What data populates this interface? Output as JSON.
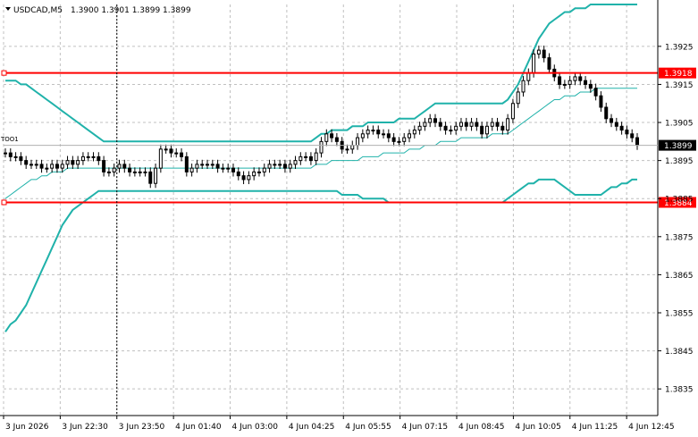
{
  "header": {
    "symbol": "USDCAD,M5",
    "ohlc": "1.3900 1.3901 1.3899 1.3899",
    "left_cut_label": "TOO1"
  },
  "chart_data": {
    "type": "candlestick",
    "title": "USDCAD,M5",
    "ylim": [
      1.3828,
      1.3936
    ],
    "y_ticks": [
      1.3925,
      1.3915,
      1.3905,
      1.3895,
      1.3885,
      1.3875,
      1.3865,
      1.3855,
      1.3845,
      1.3835
    ],
    "y_tick_labels": [
      "1.3925",
      "1.3915",
      "1.3905",
      "1.3895",
      "1.3885",
      "1.3875",
      "1.3865",
      "1.3855",
      "1.3845",
      "1.3835"
    ],
    "x_tick_labels": [
      "3 Jun 2026",
      "3 Jun 22:30",
      "3 Jun 23:50",
      "4 Jun 01:40",
      "4 Jun 03:00",
      "4 Jun 04:25",
      "4 Jun 05:55",
      "4 Jun 07:15",
      "4 Jun 08:45",
      "4 Jun 10:05",
      "4 Jun 11:25",
      "4 Jun 12:45"
    ],
    "grid": true,
    "current_price": "1.3899",
    "horizontal_lines": [
      {
        "label": "1.3918",
        "value": 1.3918,
        "color": "#ff0000"
      },
      {
        "label": "1.3884",
        "value": 1.3884,
        "color": "#ff0000"
      }
    ],
    "vertical_marker": "3 Jun 23:50",
    "closes": [
      1.3897,
      1.3896,
      1.3896,
      1.3895,
      1.3894,
      1.3894,
      1.3894,
      1.3893,
      1.3893,
      1.3894,
      1.3893,
      1.3894,
      1.3895,
      1.3894,
      1.3895,
      1.3896,
      1.3896,
      1.3896,
      1.3895,
      1.3892,
      1.3892,
      1.3893,
      1.3894,
      1.3893,
      1.3892,
      1.3892,
      1.3892,
      1.3892,
      1.3889,
      1.3893,
      1.3898,
      1.3898,
      1.3897,
      1.3897,
      1.3896,
      1.3892,
      1.3893,
      1.3894,
      1.3894,
      1.3894,
      1.3894,
      1.3893,
      1.3893,
      1.3893,
      1.3892,
      1.3891,
      1.389,
      1.3891,
      1.3892,
      1.3892,
      1.3893,
      1.3894,
      1.3894,
      1.3894,
      1.3893,
      1.3894,
      1.3895,
      1.3896,
      1.3896,
      1.3895,
      1.3897,
      1.39,
      1.3902,
      1.3901,
      1.39,
      1.3898,
      1.3898,
      1.3899,
      1.3901,
      1.3902,
      1.3903,
      1.3903,
      1.3902,
      1.3902,
      1.3901,
      1.39,
      1.39,
      1.3901,
      1.3902,
      1.3903,
      1.3904,
      1.3905,
      1.3906,
      1.3905,
      1.3904,
      1.3903,
      1.3903,
      1.3904,
      1.3905,
      1.3904,
      1.3905,
      1.3904,
      1.3902,
      1.3904,
      1.3905,
      1.3904,
      1.3903,
      1.3906,
      1.391,
      1.3913,
      1.3916,
      1.3918,
      1.3923,
      1.3924,
      1.3922,
      1.3919,
      1.3917,
      1.3915,
      1.3915,
      1.3916,
      1.3917,
      1.3916,
      1.3915,
      1.3914,
      1.3912,
      1.3909,
      1.3906,
      1.3905,
      1.3904,
      1.3903,
      1.3902,
      1.3901,
      1.3899
    ],
    "upper_band": [
      1.3916,
      1.3916,
      1.3916,
      1.3915,
      1.3915,
      1.3914,
      1.3913,
      1.3912,
      1.3911,
      1.391,
      1.3909,
      1.3908,
      1.3907,
      1.3906,
      1.3905,
      1.3904,
      1.3903,
      1.3902,
      1.3901,
      1.39,
      1.39,
      1.39,
      1.39,
      1.39,
      1.39,
      1.39,
      1.39,
      1.39,
      1.39,
      1.39,
      1.39,
      1.39,
      1.39,
      1.39,
      1.39,
      1.39,
      1.39,
      1.39,
      1.39,
      1.39,
      1.39,
      1.39,
      1.39,
      1.39,
      1.39,
      1.39,
      1.39,
      1.39,
      1.39,
      1.39,
      1.39,
      1.39,
      1.39,
      1.39,
      1.39,
      1.39,
      1.39,
      1.39,
      1.39,
      1.39,
      1.3901,
      1.3902,
      1.3902,
      1.3903,
      1.3903,
      1.3903,
      1.3903,
      1.3904,
      1.3904,
      1.3904,
      1.3905,
      1.3905,
      1.3905,
      1.3905,
      1.3905,
      1.3905,
      1.3906,
      1.3906,
      1.3906,
      1.3906,
      1.3907,
      1.3908,
      1.3909,
      1.391,
      1.391,
      1.391,
      1.391,
      1.391,
      1.391,
      1.391,
      1.391,
      1.391,
      1.391,
      1.391,
      1.391,
      1.391,
      1.391,
      1.3911,
      1.3913,
      1.3915,
      1.3918,
      1.3921,
      1.3924,
      1.3927,
      1.3929,
      1.3931,
      1.3932,
      1.3933,
      1.3934,
      1.3934,
      1.3935,
      1.3935,
      1.3935,
      1.3936,
      1.3936,
      1.3936,
      1.3936,
      1.3936,
      1.3936,
      1.3936,
      1.3936,
      1.3936,
      1.3936
    ],
    "middle_band": [
      1.3885,
      1.3886,
      1.3887,
      1.3888,
      1.3889,
      1.389,
      1.389,
      1.3891,
      1.3891,
      1.3892,
      1.3892,
      1.3892,
      1.3893,
      1.3893,
      1.3893,
      1.3893,
      1.3893,
      1.3893,
      1.3893,
      1.3893,
      1.3893,
      1.3893,
      1.3893,
      1.3893,
      1.3893,
      1.3893,
      1.3893,
      1.3893,
      1.3893,
      1.3893,
      1.3893,
      1.3893,
      1.3893,
      1.3893,
      1.3893,
      1.3893,
      1.3893,
      1.3893,
      1.3893,
      1.3893,
      1.3893,
      1.3893,
      1.3893,
      1.3893,
      1.3893,
      1.3893,
      1.3893,
      1.3893,
      1.3893,
      1.3893,
      1.3893,
      1.3893,
      1.3893,
      1.3893,
      1.3893,
      1.3893,
      1.3893,
      1.3893,
      1.3893,
      1.3893,
      1.3894,
      1.3894,
      1.3894,
      1.3895,
      1.3895,
      1.3895,
      1.3895,
      1.3895,
      1.3895,
      1.3896,
      1.3896,
      1.3896,
      1.3896,
      1.3897,
      1.3897,
      1.3897,
      1.3897,
      1.3897,
      1.3898,
      1.3898,
      1.3898,
      1.3899,
      1.3899,
      1.3899,
      1.39,
      1.39,
      1.39,
      1.39,
      1.3901,
      1.3901,
      1.3901,
      1.3901,
      1.3901,
      1.3901,
      1.3902,
      1.3902,
      1.3902,
      1.3902,
      1.3903,
      1.3904,
      1.3905,
      1.3906,
      1.3907,
      1.3908,
      1.3909,
      1.391,
      1.3911,
      1.3911,
      1.3912,
      1.3912,
      1.3912,
      1.3913,
      1.3913,
      1.3913,
      1.3914,
      1.3914,
      1.3914,
      1.3914,
      1.3914,
      1.3914,
      1.3914,
      1.3914,
      1.3914
    ],
    "lower_band": [
      1.385,
      1.3852,
      1.3853,
      1.3855,
      1.3857,
      1.386,
      1.3863,
      1.3866,
      1.3869,
      1.3872,
      1.3875,
      1.3878,
      1.388,
      1.3882,
      1.3883,
      1.3884,
      1.3885,
      1.3886,
      1.3887,
      1.3887,
      1.3887,
      1.3887,
      1.3887,
      1.3887,
      1.3887,
      1.3887,
      1.3887,
      1.3887,
      1.3887,
      1.3887,
      1.3887,
      1.3887,
      1.3887,
      1.3887,
      1.3887,
      1.3887,
      1.3887,
      1.3887,
      1.3887,
      1.3887,
      1.3887,
      1.3887,
      1.3887,
      1.3887,
      1.3887,
      1.3887,
      1.3887,
      1.3887,
      1.3887,
      1.3887,
      1.3887,
      1.3887,
      1.3887,
      1.3887,
      1.3887,
      1.3887,
      1.3887,
      1.3887,
      1.3887,
      1.3887,
      1.3887,
      1.3887,
      1.3887,
      1.3887,
      1.3887,
      1.3886,
      1.3886,
      1.3886,
      1.3886,
      1.3885,
      1.3885,
      1.3885,
      1.3885,
      1.3885,
      1.3884,
      1.3884,
      1.3884,
      1.3884,
      1.3884,
      1.3884,
      1.3884,
      1.3884,
      1.3884,
      1.3884,
      1.3884,
      1.3884,
      1.3884,
      1.3884,
      1.3884,
      1.3884,
      1.3884,
      1.3884,
      1.3884,
      1.3884,
      1.3884,
      1.3884,
      1.3884,
      1.3885,
      1.3886,
      1.3887,
      1.3888,
      1.3889,
      1.3889,
      1.389,
      1.389,
      1.389,
      1.389,
      1.3889,
      1.3888,
      1.3887,
      1.3886,
      1.3886,
      1.3886,
      1.3886,
      1.3886,
      1.3886,
      1.3887,
      1.3888,
      1.3888,
      1.3889,
      1.3889,
      1.389,
      1.389
    ]
  },
  "colors": {
    "background": "#ffffff",
    "grid": "#c0c0c0",
    "bands": "#20b2aa",
    "levels": "#ff0000",
    "candle": "#000000",
    "current_box": "#000000"
  }
}
